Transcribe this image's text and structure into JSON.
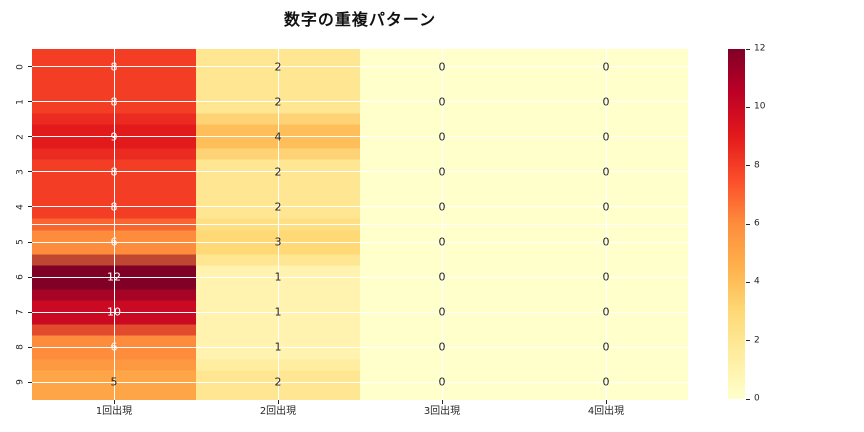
{
  "title": "数字の重複パターン",
  "chart_data": {
    "type": "heatmap",
    "title": "数字の重複パターン",
    "x_tick_labels": [
      "1回出現",
      "2回出現",
      "3回出現",
      "4回出現"
    ],
    "y_tick_labels": [
      "0",
      "1",
      "2",
      "3",
      "4",
      "5",
      "6",
      "7",
      "8",
      "9"
    ],
    "matrix": [
      [
        8,
        2,
        0,
        0
      ],
      [
        8,
        2,
        0,
        0
      ],
      [
        9,
        4,
        0,
        0
      ],
      [
        8,
        2,
        0,
        0
      ],
      [
        8,
        2,
        0,
        0
      ],
      [
        6,
        3,
        0,
        0
      ],
      [
        12,
        1,
        0,
        0
      ],
      [
        10,
        1,
        0,
        0
      ],
      [
        6,
        1,
        0,
        0
      ],
      [
        5,
        2,
        0,
        0
      ]
    ],
    "vmin": 0,
    "vmax": 12,
    "colormap": "YlOrRd",
    "colormap_stops": [
      "#ffffcc",
      "#ffeda0",
      "#fed976",
      "#feb24c",
      "#fd8d3c",
      "#fc4e2a",
      "#e31a1c",
      "#bd0026",
      "#800026"
    ],
    "colorbar_ticks": [
      0,
      2,
      4,
      6,
      8,
      10,
      12
    ],
    "annotated": true,
    "grid_on": true,
    "legend_position": "right-colorbar"
  },
  "colors": {
    "background": "#ffffff",
    "gridline": "#ffffff",
    "tick_text": "#262626",
    "annotation_dark": "#262626",
    "annotation_light": "#ffffff",
    "title_text": "#111111"
  }
}
